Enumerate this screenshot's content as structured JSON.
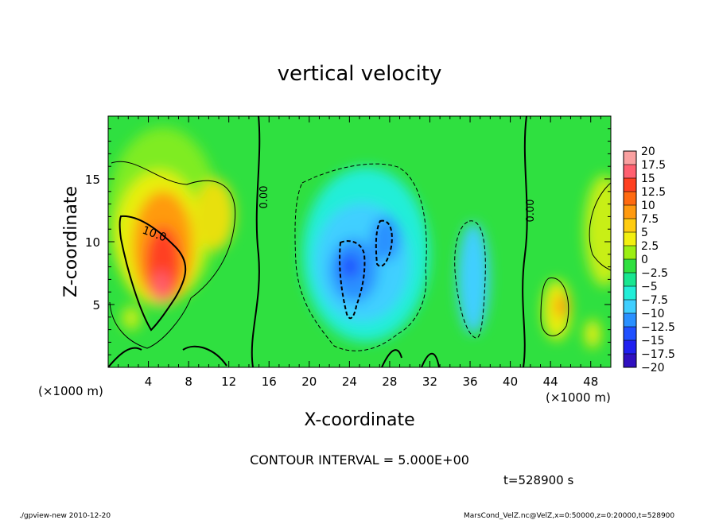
{
  "chart_data": {
    "type": "heatmap",
    "title": "vertical velocity",
    "xlabel": "X-coordinate",
    "ylabel": "Z-coordinate",
    "x_unit_left": "(×1000 m)",
    "x_unit_right": "(×1000 m)",
    "x_ticks": [
      "4",
      "8",
      "12",
      "16",
      "20",
      "24",
      "28",
      "32",
      "36",
      "40",
      "44",
      "48"
    ],
    "x_tick_values": [
      4,
      8,
      12,
      16,
      20,
      24,
      28,
      32,
      36,
      40,
      44,
      48
    ],
    "y_ticks": [
      "5",
      "10",
      "15"
    ],
    "y_tick_values": [
      5,
      10,
      15
    ],
    "xlim": [
      0,
      50
    ],
    "ylim": [
      0,
      20
    ],
    "colorbar_labels": [
      "20",
      "17.5",
      "15",
      "12.5",
      "10",
      "7.5",
      "5",
      "2.5",
      "0",
      "−2.5",
      "−5",
      "−7.5",
      "−10",
      "−12.5",
      "−15",
      "−17.5",
      "−20"
    ],
    "colorbar_colors": [
      "#f9a0a0",
      "#ff6070",
      "#ff4020",
      "#ff6a10",
      "#ff9a10",
      "#ffcc10",
      "#f2ef10",
      "#9cef14",
      "#2fe040",
      "#18e690",
      "#22eed8",
      "#40cfff",
      "#2a90ff",
      "#2050ff",
      "#2020f0",
      "#3010c0",
      "#7020b8"
    ],
    "contour_labels": [
      "10.0",
      "0.00",
      "0.00"
    ],
    "contour_interval_text": "CONTOUR INTERVAL = 5.000E+00",
    "time_text": "t=528900 s",
    "max_value": 10.0,
    "min_value": -10.0
  },
  "footer": {
    "left": "./gpview-new   2010-12-20",
    "right": "MarsCond_VelZ.nc@VelZ,x=0:50000,z=0:20000,t=528900"
  }
}
